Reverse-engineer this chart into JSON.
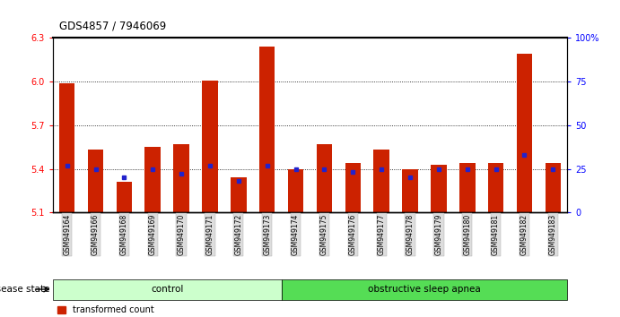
{
  "title": "GDS4857 / 7946069",
  "samples": [
    "GSM949164",
    "GSM949166",
    "GSM949168",
    "GSM949169",
    "GSM949170",
    "GSM949171",
    "GSM949172",
    "GSM949173",
    "GSM949174",
    "GSM949175",
    "GSM949176",
    "GSM949177",
    "GSM949178",
    "GSM949179",
    "GSM949180",
    "GSM949181",
    "GSM949182",
    "GSM949183"
  ],
  "transformed_count": [
    5.99,
    5.53,
    5.31,
    5.55,
    5.57,
    6.01,
    5.34,
    6.24,
    5.4,
    5.57,
    5.44,
    5.53,
    5.4,
    5.43,
    5.44,
    5.44,
    6.19,
    5.44
  ],
  "percentile_rank": [
    27,
    25,
    20,
    25,
    22,
    27,
    18,
    27,
    25,
    25,
    23,
    25,
    20,
    25,
    25,
    25,
    33,
    25
  ],
  "control_count": 8,
  "ylim_left": [
    5.1,
    6.3
  ],
  "ylim_right": [
    0,
    100
  ],
  "yticks_left": [
    5.1,
    5.4,
    5.7,
    6.0,
    6.3
  ],
  "yticks_right": [
    0,
    25,
    50,
    75,
    100
  ],
  "bar_color": "#cc2200",
  "dot_color": "#2222cc",
  "control_color": "#ccffcc",
  "apnea_color": "#55dd55",
  "bar_width": 0.55,
  "baseline": 5.1
}
